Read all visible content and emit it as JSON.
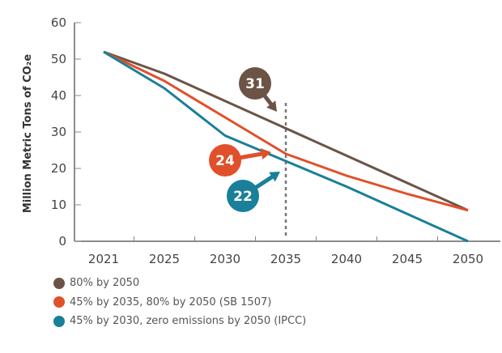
{
  "chart_data": {
    "type": "line",
    "title": "",
    "xlabel": "",
    "ylabel": "Million Metric Tons of CO₂e",
    "ylim": [
      0,
      60
    ],
    "yticks": [
      "0",
      "10",
      "20",
      "30",
      "40",
      "50",
      "60"
    ],
    "categories": [
      "2021",
      "2025",
      "2030",
      "2035",
      "2040",
      "2045",
      "2050"
    ],
    "series": [
      {
        "name": "80% by 2050",
        "color": "#6b5446",
        "x": [
          2021,
          2025,
          2035,
          2050
        ],
        "y": [
          52,
          46,
          31,
          8.5
        ]
      },
      {
        "name": "45% by 2035, 80% by 2050 (SB 1507)",
        "color": "#e0502a",
        "x": [
          2021,
          2025,
          2030,
          2034,
          2035,
          2040,
          2045,
          2050
        ],
        "y": [
          52,
          44,
          34,
          26,
          24,
          18,
          13,
          8.5
        ]
      },
      {
        "name": "45% by 2030, zero emissions by 2050 (IPCC)",
        "color": "#1a7f99",
        "x": [
          2021,
          2025,
          2030,
          2035,
          2040,
          2045,
          2050
        ],
        "y": [
          52,
          42,
          29,
          22,
          15,
          7.5,
          0
        ]
      }
    ],
    "reference_line": {
      "x": 2035,
      "style": "dashed"
    },
    "annotations": [
      {
        "label": "31",
        "series": 0,
        "year": 2035,
        "value": 31
      },
      {
        "label": "24",
        "series": 1,
        "year": 2035,
        "value": 24
      },
      {
        "label": "22",
        "series": 2,
        "year": 2035,
        "value": 22
      }
    ],
    "legend_position": "bottom-left",
    "grid": false
  }
}
